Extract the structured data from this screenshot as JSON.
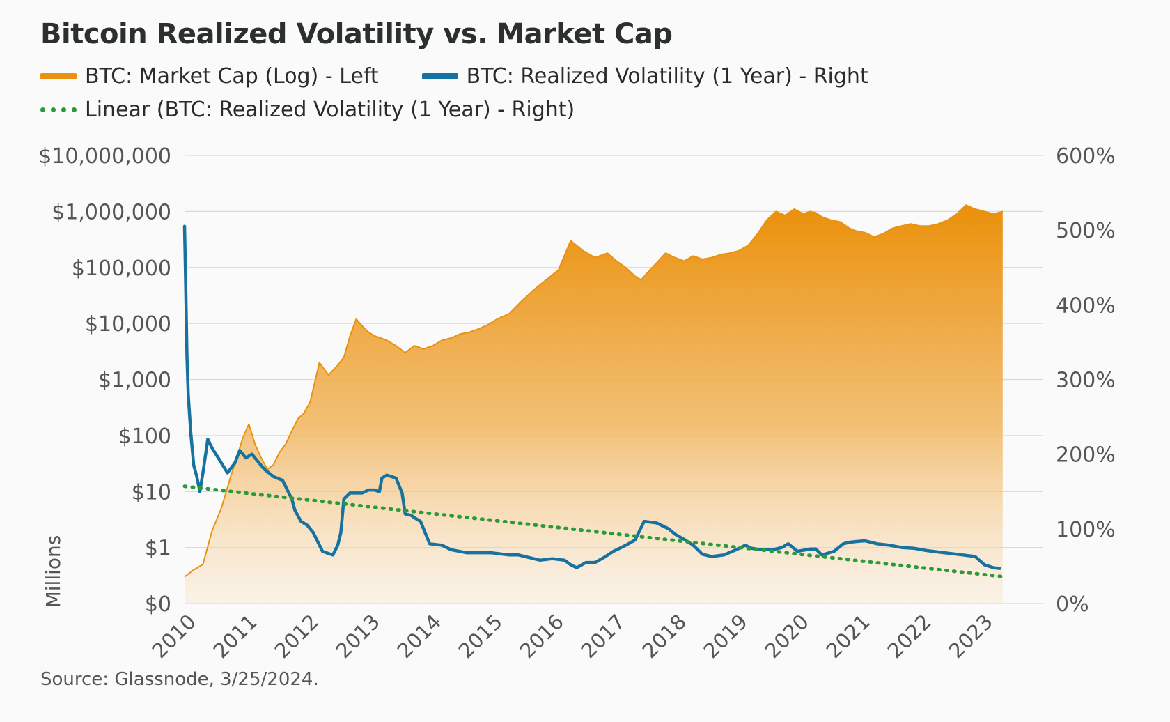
{
  "title": "Bitcoin Realized Volatility vs. Market Cap",
  "legend": [
    {
      "label": "BTC: Market Cap (Log) - Left",
      "color": "#e8930f",
      "style": "solid"
    },
    {
      "label": "BTC: Realized Volatility (1 Year) - Right",
      "color": "#1772a0",
      "style": "solid"
    },
    {
      "label": "Linear (BTC: Realized Volatility (1 Year) - Right)",
      "color": "#2a9a3a",
      "style": "dotted"
    }
  ],
  "source": "Source: Glassnode, 3/25/2024.",
  "chart_data": {
    "type": "area",
    "title": "Bitcoin Realized Volatility vs. Market Cap",
    "x_ticks": [
      "2010",
      "2011",
      "2012",
      "2013",
      "2014",
      "2015",
      "2016",
      "2017",
      "2018",
      "2019",
      "2020",
      "2021",
      "2022",
      "2023"
    ],
    "xlim": [
      2010,
      2024
    ],
    "y_left": {
      "label": "Millions",
      "scale": "log",
      "ticks": [
        "$10,000,000",
        "$1,000,000",
        "$100,000",
        "$10,000",
        "$1,000",
        "$100",
        "$10",
        "$1",
        "$0"
      ],
      "tick_values": [
        10000000,
        1000000,
        100000,
        10000,
        1000,
        100,
        10,
        1,
        0.1
      ],
      "ylim": [
        0.1,
        10000000
      ]
    },
    "y_right": {
      "label": "",
      "ticks": [
        "600%",
        "500%",
        "400%",
        "300%",
        "200%",
        "100%",
        "0%"
      ],
      "tick_values": [
        600,
        500,
        400,
        300,
        200,
        100,
        0
      ],
      "ylim": [
        0,
        600
      ]
    },
    "series": [
      {
        "name": "BTC: Market Cap (Log) - Left",
        "axis": "left",
        "color": "#e8930f",
        "x": [
          2010.0,
          2010.15,
          2010.3,
          2010.45,
          2010.6,
          2010.75,
          2010.85,
          2010.95,
          2011.05,
          2011.15,
          2011.25,
          2011.35,
          2011.45,
          2011.55,
          2011.65,
          2011.75,
          2011.85,
          2011.95,
          2012.05,
          2012.2,
          2012.35,
          2012.5,
          2012.6,
          2012.7,
          2012.8,
          2012.9,
          2013.0,
          2013.1,
          2013.2,
          2013.3,
          2013.45,
          2013.6,
          2013.75,
          2013.9,
          2014.05,
          2014.2,
          2014.35,
          2014.5,
          2014.65,
          2014.8,
          2014.95,
          2015.1,
          2015.3,
          2015.5,
          2015.7,
          2015.9,
          2016.1,
          2016.3,
          2016.5,
          2016.7,
          2016.9,
          2017.05,
          2017.2,
          2017.35,
          2017.45,
          2017.55,
          2017.7,
          2017.85,
          2018.0,
          2018.15,
          2018.3,
          2018.45,
          2018.6,
          2018.75,
          2018.9,
          2019.05,
          2019.2,
          2019.35,
          2019.5,
          2019.65,
          2019.8,
          2019.95,
          2020.1,
          2020.2,
          2020.3,
          2020.4,
          2020.55,
          2020.7,
          2020.85,
          2020.95,
          2021.1,
          2021.25,
          2021.4,
          2021.55,
          2021.7,
          2021.85,
          2022.0,
          2022.15,
          2022.3,
          2022.45,
          2022.6,
          2022.75,
          2022.9,
          2023.05,
          2023.2,
          2023.35
        ],
        "values": [
          0.3,
          0.4,
          0.5,
          2,
          5,
          18,
          40,
          90,
          160,
          70,
          40,
          25,
          30,
          50,
          70,
          120,
          200,
          250,
          400,
          2000,
          1200,
          1800,
          2500,
          6000,
          12000,
          9000,
          7000,
          6000,
          5500,
          5000,
          4000,
          3000,
          4000,
          3500,
          4000,
          5000,
          5500,
          6500,
          7000,
          8000,
          9500,
          12000,
          15000,
          25000,
          40000,
          60000,
          90000,
          300000,
          200000,
          150000,
          180000,
          130000,
          100000,
          70000,
          60000,
          80000,
          120000,
          180000,
          150000,
          130000,
          160000,
          140000,
          150000,
          170000,
          180000,
          200000,
          250000,
          400000,
          700000,
          1000000,
          850000,
          1100000,
          900000,
          1000000,
          950000,
          800000,
          700000,
          650000,
          500000,
          450000,
          420000,
          350000,
          400000,
          500000,
          550000,
          600000,
          550000,
          550000,
          600000,
          700000,
          900000,
          1300000,
          1100000,
          1000000,
          900000,
          1000000
        ]
      },
      {
        "name": "BTC: Realized Volatility (1 Year) - Right",
        "axis": "right",
        "color": "#1772a0",
        "x": [
          2010.0,
          2010.02,
          2010.04,
          2010.06,
          2010.1,
          2010.15,
          2010.2,
          2010.25,
          2010.3,
          2010.38,
          2010.45,
          2010.55,
          2010.7,
          2010.82,
          2010.9,
          2011.0,
          2011.1,
          2011.2,
          2011.3,
          2011.45,
          2011.6,
          2011.75,
          2011.8,
          2011.9,
          2012.0,
          2012.1,
          2012.25,
          2012.35,
          2012.42,
          2012.5,
          2012.55,
          2012.6,
          2012.7,
          2012.8,
          2012.9,
          2013.0,
          2013.1,
          2013.18,
          2013.22,
          2013.3,
          2013.45,
          2013.55,
          2013.6,
          2013.7,
          2013.75,
          2013.85,
          2014.0,
          2014.2,
          2014.35,
          2014.6,
          2014.8,
          2015.0,
          2015.3,
          2015.45,
          2015.6,
          2015.8,
          2016.0,
          2016.2,
          2016.3,
          2016.4,
          2016.55,
          2016.7,
          2016.85,
          2017.0,
          2017.2,
          2017.35,
          2017.5,
          2017.7,
          2017.9,
          2018.0,
          2018.15,
          2018.3,
          2018.45,
          2018.6,
          2018.8,
          2019.0,
          2019.15,
          2019.25,
          2019.4,
          2019.6,
          2019.75,
          2019.85,
          2020.0,
          2020.15,
          2020.2,
          2020.3,
          2020.4,
          2020.6,
          2020.75,
          2020.85,
          2020.95,
          2021.1,
          2021.3,
          2021.5,
          2021.7,
          2021.9,
          2022.1,
          2022.3,
          2022.5,
          2022.7,
          2022.9,
          2023.05,
          2023.2,
          2023.3
        ],
        "values": [
          505,
          420,
          330,
          280,
          230,
          185,
          170,
          150,
          175,
          220,
          208,
          195,
          175,
          188,
          205,
          195,
          200,
          190,
          180,
          170,
          165,
          140,
          125,
          110,
          105,
          95,
          70,
          67,
          65,
          78,
          95,
          140,
          148,
          148,
          148,
          152,
          152,
          150,
          168,
          172,
          168,
          148,
          120,
          118,
          115,
          110,
          80,
          78,
          72,
          68,
          68,
          68,
          65,
          65,
          62,
          58,
          60,
          58,
          52,
          48,
          55,
          55,
          62,
          70,
          78,
          85,
          110,
          108,
          100,
          93,
          86,
          78,
          66,
          63,
          65,
          72,
          78,
          74,
          72,
          72,
          75,
          80,
          70,
          72,
          73,
          73,
          65,
          70,
          80,
          82,
          83,
          84,
          80,
          78,
          75,
          74,
          71,
          69,
          67,
          65,
          63,
          52,
          48,
          47
        ]
      },
      {
        "name": "Linear (BTC: Realized Volatility (1 Year) - Right)",
        "axis": "right",
        "color": "#2a9a3a",
        "style": "dotted",
        "x": [
          2010.0,
          2023.35
        ],
        "values": [
          157,
          36
        ]
      }
    ]
  }
}
